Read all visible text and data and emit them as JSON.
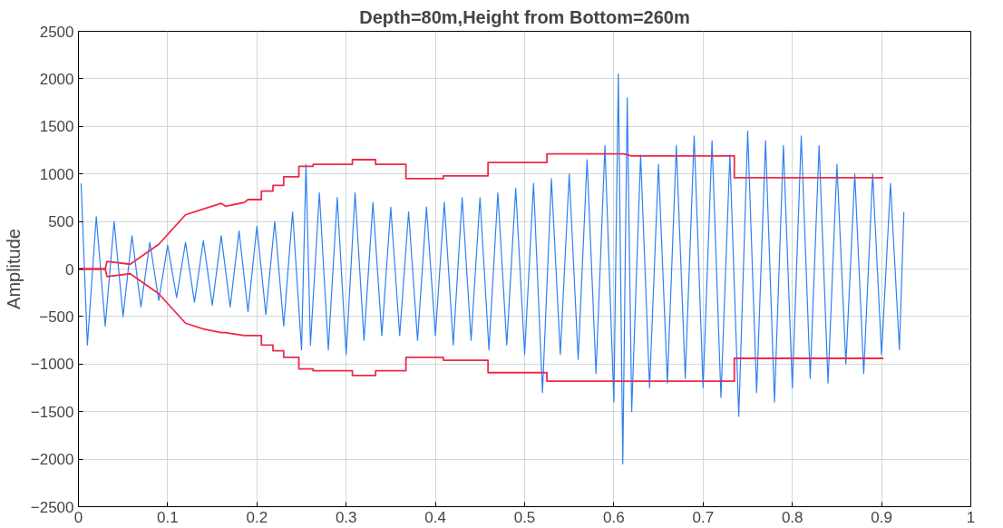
{
  "chart_data": {
    "type": "line",
    "title": "Depth=80m,Height from Bottom=260m",
    "ylabel": "Amplitude",
    "xlim": [
      0,
      1
    ],
    "xticks": [
      0,
      0.1,
      0.2,
      0.3,
      0.4,
      0.5,
      0.6,
      0.7,
      0.8,
      0.9,
      1
    ],
    "ylim": [
      -2500,
      2500
    ],
    "yticks": [
      -2500,
      -2000,
      -1500,
      -1000,
      -500,
      0,
      500,
      1000,
      1500,
      2000,
      2500
    ],
    "grid": true,
    "line_style": "solid",
    "marker": "none",
    "series": [
      {
        "color": "#2f80f0",
        "x": [
          0.003,
          0.01,
          0.02,
          0.03,
          0.04,
          0.05,
          0.06,
          0.07,
          0.08,
          0.09,
          0.1,
          0.11,
          0.12,
          0.13,
          0.14,
          0.15,
          0.16,
          0.17,
          0.18,
          0.19,
          0.2,
          0.21,
          0.22,
          0.23,
          0.24,
          0.25,
          0.255,
          0.26,
          0.27,
          0.28,
          0.29,
          0.3,
          0.31,
          0.32,
          0.33,
          0.34,
          0.35,
          0.36,
          0.37,
          0.38,
          0.39,
          0.4,
          0.41,
          0.42,
          0.43,
          0.44,
          0.45,
          0.46,
          0.47,
          0.48,
          0.49,
          0.5,
          0.51,
          0.52,
          0.53,
          0.54,
          0.55,
          0.56,
          0.57,
          0.58,
          0.59,
          0.6,
          0.605,
          0.61,
          0.615,
          0.62,
          0.63,
          0.64,
          0.65,
          0.66,
          0.67,
          0.68,
          0.69,
          0.7,
          0.71,
          0.72,
          0.73,
          0.74,
          0.75,
          0.76,
          0.77,
          0.78,
          0.79,
          0.8,
          0.81,
          0.82,
          0.83,
          0.84,
          0.85,
          0.86,
          0.87,
          0.88,
          0.89,
          0.9,
          0.91,
          0.92,
          0.925
        ],
        "values": [
          900,
          -800,
          550,
          -600,
          500,
          -500,
          350,
          -400,
          280,
          -330,
          250,
          -300,
          280,
          -350,
          300,
          -380,
          350,
          -400,
          400,
          -450,
          450,
          -480,
          500,
          -600,
          600,
          -850,
          1100,
          -800,
          800,
          -850,
          750,
          -900,
          800,
          -750,
          700,
          -700,
          650,
          -700,
          600,
          -750,
          650,
          -700,
          700,
          -800,
          750,
          -750,
          750,
          -850,
          800,
          -800,
          850,
          -900,
          900,
          -1300,
          950,
          -900,
          1000,
          -950,
          1150,
          -1100,
          1300,
          -1400,
          2050,
          -2050,
          1800,
          -1500,
          1200,
          -1250,
          1100,
          -1200,
          1300,
          -1150,
          1400,
          -1250,
          1350,
          -1350,
          1200,
          -1550,
          1450,
          -1300,
          1350,
          -1400,
          1300,
          -1250,
          1400,
          -1150,
          1300,
          -1200,
          1100,
          -1000,
          1000,
          -1100,
          1000,
          -900,
          900,
          -850,
          600
        ]
      },
      {
        "color": "#ee2a4a",
        "x": [
          0,
          0.03,
          0.032,
          0.058,
          0.09,
          0.12,
          0.14,
          0.16,
          0.165,
          0.186,
          0.19,
          0.205,
          0.205,
          0.218,
          0.218,
          0.23,
          0.23,
          0.247,
          0.247,
          0.263,
          0.263,
          0.307,
          0.307,
          0.333,
          0.333,
          0.367,
          0.367,
          0.409,
          0.409,
          0.459,
          0.459,
          0.525,
          0.525,
          0.611,
          0.62,
          0.735,
          0.735,
          0.902
        ],
        "values": [
          0,
          0,
          80,
          50,
          260,
          570,
          630,
          690,
          660,
          700,
          730,
          730,
          820,
          820,
          880,
          880,
          970,
          970,
          1080,
          1080,
          1100,
          1100,
          1150,
          1150,
          1100,
          1100,
          950,
          950,
          980,
          980,
          1120,
          1120,
          1210,
          1210,
          1190,
          1190,
          960,
          960
        ]
      },
      {
        "color": "#ee2a4a",
        "x": [
          0,
          0.03,
          0.032,
          0.058,
          0.09,
          0.12,
          0.14,
          0.16,
          0.165,
          0.186,
          0.19,
          0.205,
          0.205,
          0.218,
          0.218,
          0.23,
          0.23,
          0.247,
          0.247,
          0.263,
          0.263,
          0.307,
          0.307,
          0.333,
          0.333,
          0.367,
          0.367,
          0.409,
          0.409,
          0.459,
          0.459,
          0.525,
          0.525,
          0.611,
          0.62,
          0.735,
          0.735,
          0.902
        ],
        "values": [
          0,
          0,
          -80,
          -50,
          -260,
          -570,
          -630,
          -670,
          -670,
          -700,
          -700,
          -700,
          -800,
          -800,
          -860,
          -860,
          -930,
          -930,
          -1050,
          -1050,
          -1070,
          -1070,
          -1120,
          -1120,
          -1070,
          -1070,
          -930,
          -930,
          -960,
          -960,
          -1090,
          -1090,
          -1180,
          -1180,
          -1180,
          -1180,
          -940,
          -940
        ]
      }
    ]
  }
}
